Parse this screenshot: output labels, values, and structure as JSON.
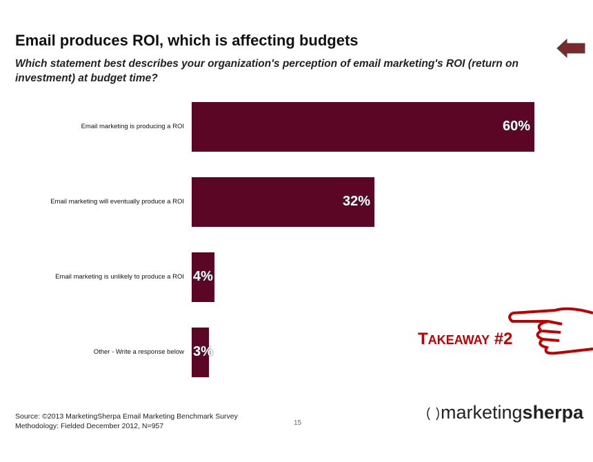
{
  "title": "Email produces ROI, which is affecting budgets",
  "subtitle": "Which statement best describes your organization's perception of email marketing's ROI (return on investment) at budget time?",
  "chart_data": {
    "type": "bar",
    "orientation": "horizontal",
    "categories": [
      "Email marketing is producing a ROI",
      "Email marketing will eventually produce a ROI",
      "Email marketing is unlikely to produce a ROI",
      "Other - Write a response below"
    ],
    "values": [
      60,
      32,
      4,
      3
    ],
    "labels": [
      "60%",
      "32%",
      "4%",
      "3%"
    ],
    "xlim": [
      0,
      60
    ],
    "color": "#5c0625"
  },
  "takeaway": {
    "first": "T",
    "rest": "AKEAWAY",
    "num": " #2",
    "color": "#c00000"
  },
  "footer": {
    "source": "Source: ©2013 MarketingSherpa Email Marketing Benchmark Survey",
    "method": "Methodology: Fielded December 2012, N=957",
    "page": "15"
  },
  "logo": {
    "light": "marketing",
    "bold": "sherpa"
  }
}
